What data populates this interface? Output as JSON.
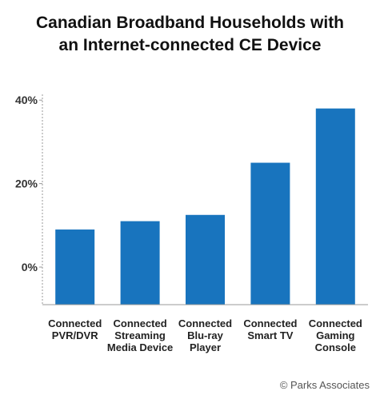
{
  "chart_data": {
    "type": "bar",
    "title_lines": [
      "Canadian Broadband Households with",
      "an Internet-connected CE Device"
    ],
    "categories": [
      [
        "Connected",
        "PVR/DVR"
      ],
      [
        "Connected",
        "Streaming",
        "Media Device"
      ],
      [
        "Connected",
        "Blu-ray",
        "Player"
      ],
      [
        "Connected",
        "Smart TV"
      ],
      [
        "Connected",
        "Gaming",
        "Console"
      ]
    ],
    "values": [
      9,
      11,
      12.5,
      25,
      38
    ],
    "y_ticks": [
      {
        "value": 0,
        "label": "0%"
      },
      {
        "value": 20,
        "label": "20%"
      },
      {
        "value": 40,
        "label": "40%"
      }
    ],
    "ylim": [
      -9,
      41
    ],
    "bar_color": "#1874be",
    "axis_color": "#9a9a9a",
    "copyright": "© Parks Associates",
    "grid": false
  }
}
